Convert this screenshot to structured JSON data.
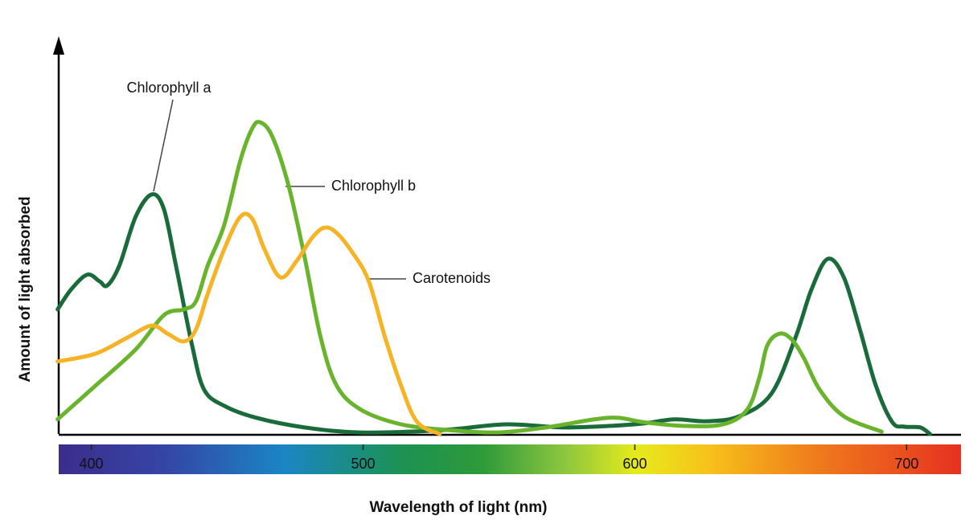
{
  "chart_data": {
    "type": "line",
    "x_label": "Wavelength of light (nm)",
    "y_label": "Amount of light absorbed",
    "xlim": [
      388,
      720
    ],
    "ylim": [
      0,
      100
    ],
    "xticks": [
      400,
      500,
      600,
      700
    ],
    "series": [
      {
        "name": "Chlorophyll a",
        "color": "#1a6b3a",
        "x": [
          387.6,
          392.6,
          398.5,
          403.0,
          405.9,
          410.4,
          416.3,
          422.2,
          426.7,
          431.1,
          437.1,
          441.5,
          448.9,
          460.7,
          478.5,
          499.2,
          528.8,
          552.5,
          573.2,
          591.0,
          602.8,
          614.7,
          626.5,
          638.4,
          650.2,
          659.1,
          665.0,
          671.0,
          676.9,
          682.8,
          688.7,
          694.7,
          699.1,
          705.0,
          708.6
        ],
        "values": [
          32.3,
          37.5,
          41.3,
          39.6,
          38.5,
          43.8,
          56.3,
          62.1,
          58.3,
          43.8,
          22.9,
          11.5,
          7.3,
          4.2,
          1.7,
          0.4,
          1.0,
          2.5,
          1.7,
          2.1,
          2.7,
          3.8,
          3.3,
          4.6,
          10.4,
          25.0,
          37.5,
          45.4,
          40.6,
          27.1,
          12.5,
          3.1,
          1.9,
          1.7,
          0
        ]
      },
      {
        "name": "Chlorophyll b",
        "color": "#6ab42d",
        "x": [
          387.6,
          401.5,
          416.3,
          426.7,
          434.1,
          438.5,
          442.9,
          448.9,
          454.8,
          459.2,
          462.2,
          466.6,
          472.5,
          478.5,
          484.4,
          490.3,
          499.2,
          514.0,
          531.8,
          549.5,
          567.3,
          585.1,
          594.0,
          602.8,
          617.6,
          632.5,
          641.3,
          645.8,
          648.7,
          653.2,
          657.6,
          662.1,
          668.0,
          676.9,
          690.8
        ],
        "values": [
          3.8,
          12.5,
          21.9,
          30.8,
          32.3,
          34.4,
          43.8,
          54.2,
          70.8,
          79.2,
          80.8,
          77.1,
          64.6,
          45.8,
          25.0,
          12.5,
          6.3,
          2.5,
          1.0,
          0.4,
          1.7,
          3.8,
          4.2,
          3.1,
          2.1,
          2.5,
          6.3,
          14.6,
          22.9,
          26.0,
          24.6,
          19.8,
          11.5,
          4.6,
          0.6
        ]
      },
      {
        "name": "Carotenoids",
        "color": "#f5b325",
        "x": [
          387.6,
          401.5,
          413.3,
          422.2,
          428.1,
          434.1,
          438.5,
          442.9,
          448.9,
          454.8,
          459.2,
          463.7,
          469.6,
          475.5,
          481.4,
          485.9,
          490.3,
          496.2,
          502.1,
          508.1,
          514.0,
          519.9,
          528.2
        ],
        "values": [
          18.8,
          20.8,
          25.0,
          28.1,
          26.0,
          24.0,
          27.1,
          36.5,
          47.9,
          56.3,
          55.8,
          47.9,
          40.6,
          44.8,
          51.0,
          53.5,
          52.1,
          46.9,
          39.6,
          25.0,
          12.5,
          3.1,
          0
        ]
      }
    ]
  }
}
